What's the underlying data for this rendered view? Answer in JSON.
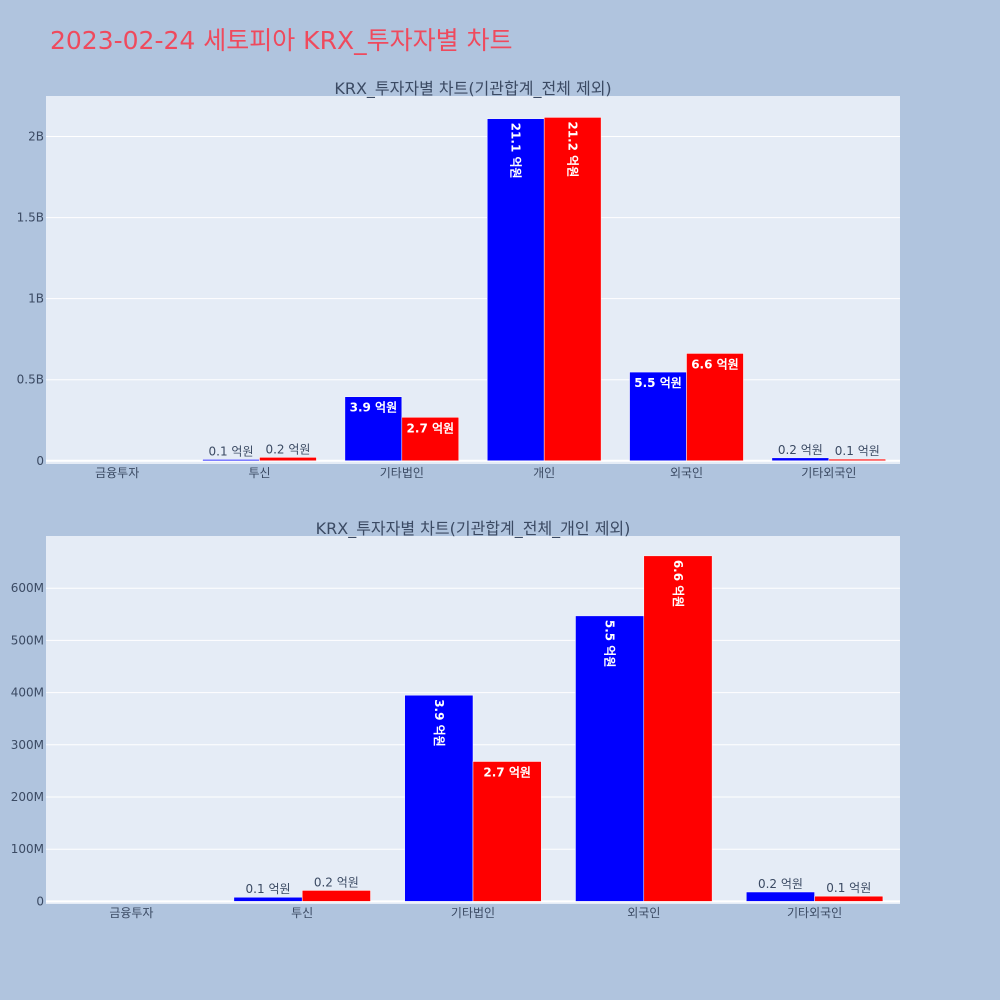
{
  "page_title": "2023-02-24 세토피아 KRX_투자자별 차트",
  "colors": {
    "background": "#b0c4de",
    "plot_bg": "#e5ecf6",
    "title": "#ef4a5d",
    "text": "#3b4a63",
    "series_a": "#0000ff",
    "series_b": "#ff0000"
  },
  "chart_data": [
    {
      "type": "bar",
      "title": "KRX_투자자별 차트(기관합계_전체 제외)",
      "categories": [
        "금융투자",
        "투신",
        "기타법인",
        "개인",
        "외국인",
        "기타외국인"
      ],
      "ylim": [
        -20000000,
        2250000000
      ],
      "y_ticks": [
        0,
        500000000,
        1000000000,
        1500000000,
        2000000000
      ],
      "y_tick_labels": [
        "0",
        "0.5B",
        "1B",
        "1.5B",
        "2B"
      ],
      "grid": true,
      "series": [
        {
          "color": "#0000ff",
          "values": [
            0,
            8000000,
            395000000,
            2110000000,
            547000000,
            18000000
          ],
          "labels": [
            "",
            "0.1 억원",
            "3.9 억원",
            "21.1 억원",
            "5.5 억원",
            "0.2 억원"
          ]
        },
        {
          "color": "#ff0000",
          "values": [
            0,
            21000000,
            268000000,
            2118000000,
            662000000,
            10000000
          ],
          "labels": [
            "",
            "0.2 억원",
            "2.7 억원",
            "21.2 억원",
            "6.6 억원",
            "0.1 억원"
          ]
        }
      ]
    },
    {
      "type": "bar",
      "title": "KRX_투자자별 차트(기관합계_전체_개인 제외)",
      "categories": [
        "금융투자",
        "투신",
        "기타법인",
        "외국인",
        "기타외국인"
      ],
      "ylim": [
        -5000000,
        700000000
      ],
      "y_ticks": [
        0,
        100000000,
        200000000,
        300000000,
        400000000,
        500000000,
        600000000
      ],
      "y_tick_labels": [
        "0",
        "100M",
        "200M",
        "300M",
        "400M",
        "500M",
        "600M"
      ],
      "grid": true,
      "series": [
        {
          "color": "#0000ff",
          "values": [
            0,
            8000000,
            395000000,
            547000000,
            18000000
          ],
          "labels": [
            "",
            "0.1 억원",
            "3.9 억원",
            "5.5 억원",
            "0.2 억원"
          ]
        },
        {
          "color": "#ff0000",
          "values": [
            0,
            21000000,
            268000000,
            662000000,
            10000000
          ],
          "labels": [
            "",
            "0.2 억원",
            "2.7 억원",
            "6.6 억원",
            "0.1 억원"
          ]
        }
      ]
    }
  ]
}
